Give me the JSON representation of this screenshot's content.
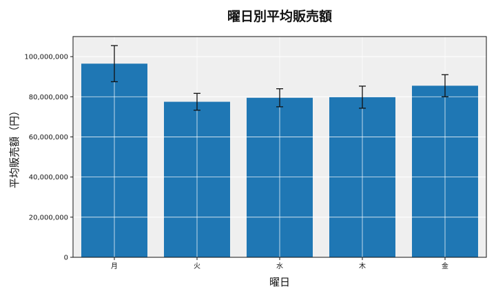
{
  "chart_data": {
    "type": "bar",
    "title": "曜日別平均販売額",
    "xlabel": "曜日",
    "ylabel": "平均販売額（円）",
    "categories": [
      "月",
      "火",
      "水",
      "木",
      "金"
    ],
    "values": [
      96500000,
      77500000,
      79500000,
      79800000,
      85500000
    ],
    "errors": [
      9000000,
      4200000,
      4500000,
      5500000,
      5500000
    ],
    "ylim": [
      0,
      110000000
    ],
    "yticks": [
      0,
      20000000,
      40000000,
      60000000,
      80000000,
      100000000
    ],
    "ytick_labels": [
      "0",
      "20,000,000",
      "40,000,000",
      "60,000,000",
      "80,000,000",
      "100,000,000"
    ],
    "grid": true,
    "colors": {
      "bar": "#1f77b4",
      "plot_bg": "#efefef",
      "grid": "#ffffff",
      "error_bar": "#111111"
    }
  }
}
